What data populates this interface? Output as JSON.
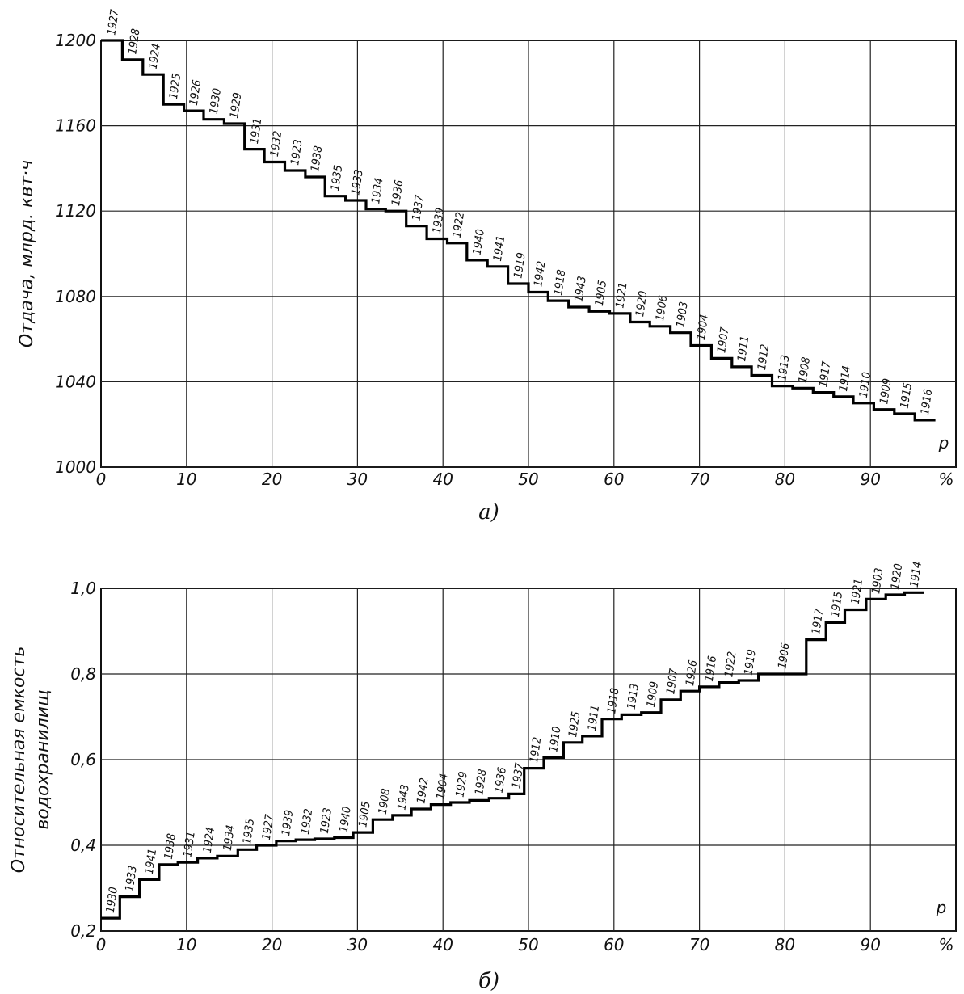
{
  "chart_data": [
    {
      "type": "line",
      "step": true,
      "caption": "а)",
      "ylabel": "Отдача, млрд. квт·ч",
      "xlabel": "p",
      "x_unit": "%",
      "xlim": [
        0,
        100
      ],
      "ylim": [
        1000,
        1200
      ],
      "grid": true,
      "x_ticks": [
        "0",
        "10",
        "20",
        "30",
        "40",
        "50",
        "60",
        "70",
        "80",
        "90"
      ],
      "y_ticks": [
        "1000",
        "1040",
        "1080",
        "1120",
        "1160",
        "1200"
      ],
      "x_tick_values": [
        0,
        10,
        20,
        30,
        40,
        50,
        60,
        70,
        80,
        90
      ],
      "y_tick_values": [
        1000,
        1040,
        1080,
        1120,
        1160,
        1200
      ],
      "steps": [
        {
          "year": "1927",
          "x_end": 2.5,
          "y": 1200
        },
        {
          "year": "1928",
          "x_end": 4.9,
          "y": 1191
        },
        {
          "year": "1924",
          "x_end": 7.3,
          "y": 1184
        },
        {
          "year": "1925",
          "x_end": 9.7,
          "y": 1170
        },
        {
          "year": "1926",
          "x_end": 12.0,
          "y": 1167
        },
        {
          "year": "1930",
          "x_end": 14.4,
          "y": 1163
        },
        {
          "year": "1929",
          "x_end": 16.8,
          "y": 1161
        },
        {
          "year": "1931",
          "x_end": 19.1,
          "y": 1149
        },
        {
          "year": "1932",
          "x_end": 21.5,
          "y": 1143
        },
        {
          "year": "1923",
          "x_end": 23.9,
          "y": 1139
        },
        {
          "year": "1938",
          "x_end": 26.2,
          "y": 1136
        },
        {
          "year": "1935",
          "x_end": 28.6,
          "y": 1127
        },
        {
          "year": "1933",
          "x_end": 31.0,
          "y": 1125
        },
        {
          "year": "1934",
          "x_end": 33.3,
          "y": 1121
        },
        {
          "year": "1936",
          "x_end": 35.7,
          "y": 1120
        },
        {
          "year": "1937",
          "x_end": 38.1,
          "y": 1113
        },
        {
          "year": "1939",
          "x_end": 40.5,
          "y": 1107
        },
        {
          "year": "1922",
          "x_end": 42.8,
          "y": 1105
        },
        {
          "year": "1940",
          "x_end": 45.2,
          "y": 1097
        },
        {
          "year": "1941",
          "x_end": 47.6,
          "y": 1094
        },
        {
          "year": "1919",
          "x_end": 50.0,
          "y": 1086
        },
        {
          "year": "1942",
          "x_end": 52.3,
          "y": 1082
        },
        {
          "year": "1918",
          "x_end": 54.7,
          "y": 1078
        },
        {
          "year": "1943",
          "x_end": 57.1,
          "y": 1075
        },
        {
          "year": "1905",
          "x_end": 59.5,
          "y": 1073
        },
        {
          "year": "1921",
          "x_end": 61.9,
          "y": 1072
        },
        {
          "year": "1920",
          "x_end": 64.2,
          "y": 1068
        },
        {
          "year": "1906",
          "x_end": 66.6,
          "y": 1066
        },
        {
          "year": "1903",
          "x_end": 69.0,
          "y": 1063
        },
        {
          "year": "1904",
          "x_end": 71.4,
          "y": 1057
        },
        {
          "year": "1907",
          "x_end": 73.8,
          "y": 1051
        },
        {
          "year": "1911",
          "x_end": 76.1,
          "y": 1047
        },
        {
          "year": "1912",
          "x_end": 78.5,
          "y": 1043
        },
        {
          "year": "1913",
          "x_end": 80.9,
          "y": 1038
        },
        {
          "year": "1908",
          "x_end": 83.3,
          "y": 1037
        },
        {
          "year": "1917",
          "x_end": 85.7,
          "y": 1035
        },
        {
          "year": "1914",
          "x_end": 88.0,
          "y": 1033
        },
        {
          "year": "1910",
          "x_end": 90.4,
          "y": 1030
        },
        {
          "year": "1909",
          "x_end": 92.8,
          "y": 1027
        },
        {
          "year": "1915",
          "x_end": 95.2,
          "y": 1025
        },
        {
          "year": "1916",
          "x_end": 97.6,
          "y": 1022
        }
      ]
    },
    {
      "type": "line",
      "step": true,
      "caption": "б)",
      "ylabel": "Относительная емкость водохранилищ",
      "xlabel": "p",
      "x_unit": "%",
      "xlim": [
        0,
        100
      ],
      "ylim": [
        0.2,
        1.0
      ],
      "grid": true,
      "x_ticks": [
        "0",
        "10",
        "20",
        "30",
        "40",
        "50",
        "60",
        "70",
        "80",
        "90"
      ],
      "y_ticks": [
        "0,2",
        "0,4",
        "0,6",
        "0,8",
        "1,0"
      ],
      "x_tick_values": [
        0,
        10,
        20,
        30,
        40,
        50,
        60,
        70,
        80,
        90
      ],
      "y_tick_values": [
        0.2,
        0.4,
        0.6,
        0.8,
        1.0
      ],
      "steps": [
        {
          "year": "1930",
          "x_end": 2.2,
          "y": 0.23
        },
        {
          "year": "1933",
          "x_end": 4.5,
          "y": 0.28
        },
        {
          "year": "1941",
          "x_end": 6.8,
          "y": 0.32
        },
        {
          "year": "1938",
          "x_end": 9.0,
          "y": 0.355
        },
        {
          "year": "1931",
          "x_end": 11.3,
          "y": 0.36
        },
        {
          "year": "1924",
          "x_end": 13.6,
          "y": 0.37
        },
        {
          "year": "1934",
          "x_end": 16.0,
          "y": 0.375
        },
        {
          "year": "1935",
          "x_end": 18.2,
          "y": 0.39
        },
        {
          "year": "1927",
          "x_end": 20.5,
          "y": 0.4
        },
        {
          "year": "1939",
          "x_end": 22.8,
          "y": 0.41
        },
        {
          "year": "1932",
          "x_end": 25.0,
          "y": 0.413
        },
        {
          "year": "1923",
          "x_end": 27.3,
          "y": 0.415
        },
        {
          "year": "1940",
          "x_end": 29.5,
          "y": 0.418
        },
        {
          "year": "1905",
          "x_end": 31.8,
          "y": 0.43
        },
        {
          "year": "1908",
          "x_end": 34.1,
          "y": 0.46
        },
        {
          "year": "1943",
          "x_end": 36.3,
          "y": 0.47
        },
        {
          "year": "1942",
          "x_end": 38.6,
          "y": 0.485
        },
        {
          "year": "1904",
          "x_end": 40.9,
          "y": 0.495
        },
        {
          "year": "1929",
          "x_end": 43.1,
          "y": 0.5
        },
        {
          "year": "1928",
          "x_end": 45.4,
          "y": 0.505
        },
        {
          "year": "1936",
          "x_end": 47.7,
          "y": 0.51
        },
        {
          "year": "1937",
          "x_end": 49.5,
          "y": 0.52
        },
        {
          "year": "1912",
          "x_end": 51.8,
          "y": 0.58
        },
        {
          "year": "1910",
          "x_end": 54.1,
          "y": 0.605
        },
        {
          "year": "1925",
          "x_end": 56.3,
          "y": 0.64
        },
        {
          "year": "1911",
          "x_end": 58.6,
          "y": 0.655
        },
        {
          "year": "1918",
          "x_end": 60.9,
          "y": 0.695
        },
        {
          "year": "1913",
          "x_end": 63.2,
          "y": 0.705
        },
        {
          "year": "1909",
          "x_end": 65.5,
          "y": 0.71
        },
        {
          "year": "1907",
          "x_end": 67.8,
          "y": 0.74
        },
        {
          "year": "1926",
          "x_end": 70.0,
          "y": 0.76
        },
        {
          "year": "1916",
          "x_end": 72.3,
          "y": 0.77
        },
        {
          "year": "1922",
          "x_end": 74.6,
          "y": 0.78
        },
        {
          "year": "1919",
          "x_end": 76.9,
          "y": 0.785
        },
        {
          "year": "1906",
          "x_end": 82.5,
          "y": 0.8
        },
        {
          "year": "1917",
          "x_end": 84.8,
          "y": 0.88
        },
        {
          "year": "1915",
          "x_end": 87.0,
          "y": 0.92
        },
        {
          "year": "1921",
          "x_end": 89.5,
          "y": 0.95
        },
        {
          "year": "1903",
          "x_end": 91.8,
          "y": 0.975
        },
        {
          "year": "1920",
          "x_end": 94.0,
          "y": 0.985
        },
        {
          "year": "1914",
          "x_end": 96.3,
          "y": 0.99
        }
      ]
    }
  ]
}
